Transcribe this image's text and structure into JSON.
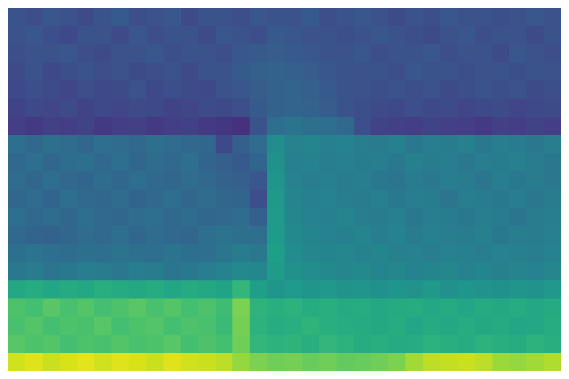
{
  "chart_data": {
    "type": "heatmap",
    "color": "Viridis",
    "zlim": [
      0,
      100
    ],
    "tick_labels": false,
    "cells": [
      [
        26,
        24,
        27,
        25,
        23,
        26,
        28,
        24,
        25,
        27,
        23,
        26,
        25,
        24,
        27,
        26,
        25,
        28,
        24,
        26,
        27,
        25,
        23,
        26,
        24,
        27,
        25,
        26,
        24,
        25,
        27,
        25
      ],
      [
        25,
        27,
        24,
        22,
        26,
        25,
        23,
        27,
        24,
        26,
        25,
        23,
        27,
        26,
        24,
        28,
        27,
        25,
        26,
        24,
        25,
        27,
        26,
        24,
        23,
        25,
        27,
        24,
        26,
        25,
        23,
        26
      ],
      [
        24,
        26,
        25,
        27,
        24,
        23,
        26,
        25,
        27,
        24,
        26,
        25,
        24,
        27,
        28,
        29,
        28,
        27,
        26,
        25,
        27,
        24,
        26,
        25,
        27,
        24,
        25,
        26,
        23,
        27,
        25,
        24
      ],
      [
        23,
        25,
        22,
        24,
        26,
        24,
        25,
        23,
        24,
        26,
        23,
        25,
        26,
        28,
        30,
        31,
        30,
        29,
        27,
        26,
        25,
        26,
        24,
        27,
        25,
        26,
        24,
        25,
        26,
        24,
        26,
        25
      ],
      [
        22,
        24,
        23,
        21,
        24,
        22,
        23,
        25,
        22,
        24,
        23,
        22,
        25,
        27,
        29,
        31,
        32,
        30,
        28,
        26,
        25,
        24,
        26,
        24,
        25,
        23,
        24,
        26,
        24,
        25,
        23,
        24
      ],
      [
        20,
        22,
        21,
        23,
        20,
        22,
        21,
        23,
        22,
        20,
        21,
        23,
        22,
        24,
        28,
        31,
        32,
        31,
        29,
        26,
        24,
        23,
        22,
        24,
        22,
        23,
        21,
        22,
        23,
        21,
        22,
        23
      ],
      [
        18,
        17,
        19,
        18,
        20,
        17,
        18,
        19,
        17,
        18,
        19,
        17,
        16,
        14,
        26,
        36,
        38,
        37,
        36,
        34,
        24,
        20,
        19,
        18,
        20,
        19,
        18,
        17,
        19,
        18,
        20,
        18
      ],
      [
        36,
        34,
        37,
        35,
        33,
        36,
        35,
        34,
        37,
        35,
        34,
        33,
        22,
        30,
        35,
        48,
        44,
        45,
        43,
        44,
        42,
        41,
        43,
        40,
        42,
        41,
        43,
        40,
        42,
        41,
        40,
        42
      ],
      [
        34,
        36,
        33,
        35,
        37,
        34,
        36,
        33,
        35,
        34,
        36,
        32,
        30,
        28,
        32,
        50,
        43,
        44,
        42,
        43,
        41,
        42,
        40,
        43,
        41,
        42,
        40,
        42,
        41,
        43,
        41,
        40
      ],
      [
        35,
        33,
        36,
        34,
        32,
        35,
        33,
        36,
        34,
        33,
        35,
        34,
        31,
        30,
        27,
        52,
        44,
        42,
        43,
        41,
        42,
        40,
        39,
        41,
        40,
        42,
        41,
        39,
        42,
        40,
        41,
        40
      ],
      [
        33,
        35,
        32,
        36,
        34,
        33,
        35,
        32,
        34,
        36,
        33,
        35,
        33,
        32,
        24,
        53,
        45,
        43,
        44,
        42,
        41,
        43,
        40,
        42,
        41,
        39,
        42,
        41,
        40,
        42,
        40,
        41
      ],
      [
        36,
        34,
        35,
        33,
        36,
        34,
        33,
        35,
        36,
        34,
        35,
        33,
        34,
        35,
        30,
        54,
        46,
        44,
        43,
        45,
        42,
        41,
        43,
        40,
        42,
        41,
        40,
        42,
        41,
        39,
        41,
        42
      ],
      [
        34,
        32,
        31,
        33,
        35,
        34,
        36,
        33,
        35,
        34,
        33,
        36,
        38,
        37,
        36,
        55,
        47,
        45,
        44,
        43,
        45,
        42,
        44,
        41,
        43,
        42,
        41,
        43,
        40,
        42,
        41,
        43
      ],
      [
        37,
        38,
        36,
        35,
        37,
        36,
        38,
        37,
        36,
        38,
        37,
        36,
        39,
        41,
        40,
        56,
        48,
        46,
        45,
        46,
        44,
        45,
        43,
        44,
        42,
        44,
        43,
        42,
        44,
        43,
        42,
        44
      ],
      [
        40,
        41,
        39,
        40,
        42,
        41,
        40,
        42,
        41,
        39,
        40,
        42,
        44,
        47,
        46,
        55,
        50,
        48,
        47,
        46,
        47,
        45,
        46,
        44,
        45,
        46,
        44,
        45,
        43,
        45,
        44,
        46
      ],
      [
        60,
        62,
        59,
        61,
        60,
        63,
        61,
        60,
        62,
        59,
        61,
        60,
        58,
        66,
        56,
        52,
        54,
        52,
        53,
        51,
        52,
        50,
        52,
        51,
        53,
        50,
        52,
        51,
        50,
        52,
        51,
        53
      ],
      [
        72,
        70,
        74,
        71,
        73,
        70,
        72,
        74,
        71,
        73,
        70,
        72,
        69,
        80,
        65,
        63,
        64,
        62,
        63,
        61,
        62,
        60,
        61,
        62,
        60,
        61,
        59,
        61,
        60,
        62,
        60,
        61
      ],
      [
        71,
        73,
        70,
        72,
        71,
        74,
        70,
        72,
        73,
        70,
        72,
        71,
        68,
        79,
        64,
        62,
        63,
        65,
        63,
        62,
        61,
        60,
        62,
        59,
        61,
        60,
        62,
        60,
        61,
        59,
        60,
        62
      ],
      [
        74,
        72,
        73,
        70,
        72,
        71,
        73,
        71,
        72,
        74,
        70,
        72,
        70,
        78,
        66,
        64,
        65,
        63,
        66,
        64,
        62,
        63,
        61,
        62,
        64,
        63,
        62,
        64,
        63,
        62,
        64,
        63
      ],
      [
        93,
        95,
        92,
        94,
        96,
        93,
        95,
        94,
        92,
        95,
        93,
        92,
        90,
        84,
        80,
        78,
        79,
        77,
        78,
        76,
        77,
        78,
        80,
        86,
        90,
        91,
        92,
        90,
        85,
        84,
        86,
        88
      ]
    ]
  }
}
